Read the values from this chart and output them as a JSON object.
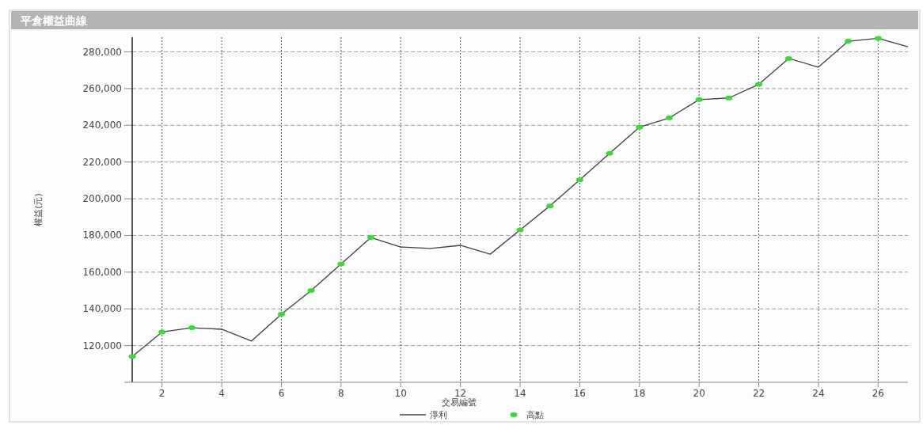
{
  "chart_data": {
    "type": "line",
    "title": "平倉權益曲線",
    "xlabel": "交易編號",
    "ylabel": "權益(元)",
    "x": [
      1,
      2,
      3,
      4,
      5,
      6,
      7,
      8,
      9,
      10,
      11,
      12,
      13,
      14,
      15,
      16,
      17,
      18,
      19,
      20,
      21,
      22,
      23,
      24,
      25,
      26,
      27
    ],
    "series": [
      {
        "name": "淨利",
        "color": "#404040",
        "marker": "none",
        "values": [
          114000,
          127400,
          129700,
          128900,
          122500,
          137100,
          150000,
          164500,
          178900,
          173700,
          172900,
          174600,
          169800,
          183000,
          196100,
          210300,
          224700,
          239000,
          244000,
          254000,
          254900,
          262300,
          276400,
          271700,
          285800,
          287400,
          282800
        ]
      },
      {
        "name": "高點",
        "type": "scatter",
        "color": "#33dd33",
        "marker": "circle",
        "x": [
          1,
          2,
          3,
          6,
          7,
          8,
          9,
          14,
          15,
          16,
          17,
          18,
          19,
          20,
          21,
          22,
          23,
          25,
          26
        ],
        "values": [
          114000,
          127400,
          129700,
          137100,
          150000,
          164500,
          178900,
          183000,
          196100,
          210300,
          224700,
          239000,
          244000,
          254000,
          254900,
          262300,
          276400,
          285800,
          287400
        ]
      }
    ],
    "xlim": [
      1,
      27
    ],
    "ylim": [
      100000,
      288000
    ],
    "xticks": [
      2,
      4,
      6,
      8,
      10,
      12,
      14,
      16,
      18,
      20,
      22,
      24,
      26
    ],
    "yticks": [
      {
        "value": 120000,
        "label": "120,000"
      },
      {
        "value": 140000,
        "label": "140,000"
      },
      {
        "value": 160000,
        "label": "160,000"
      },
      {
        "value": 180000,
        "label": "180,000"
      },
      {
        "value": 200000,
        "label": "200,000"
      },
      {
        "value": 220000,
        "label": "220,000"
      },
      {
        "value": 240000,
        "label": "240,000"
      },
      {
        "value": 260000,
        "label": "260,000"
      },
      {
        "value": 280000,
        "label": "280,000"
      }
    ],
    "grid": true,
    "legend": "bottom"
  }
}
